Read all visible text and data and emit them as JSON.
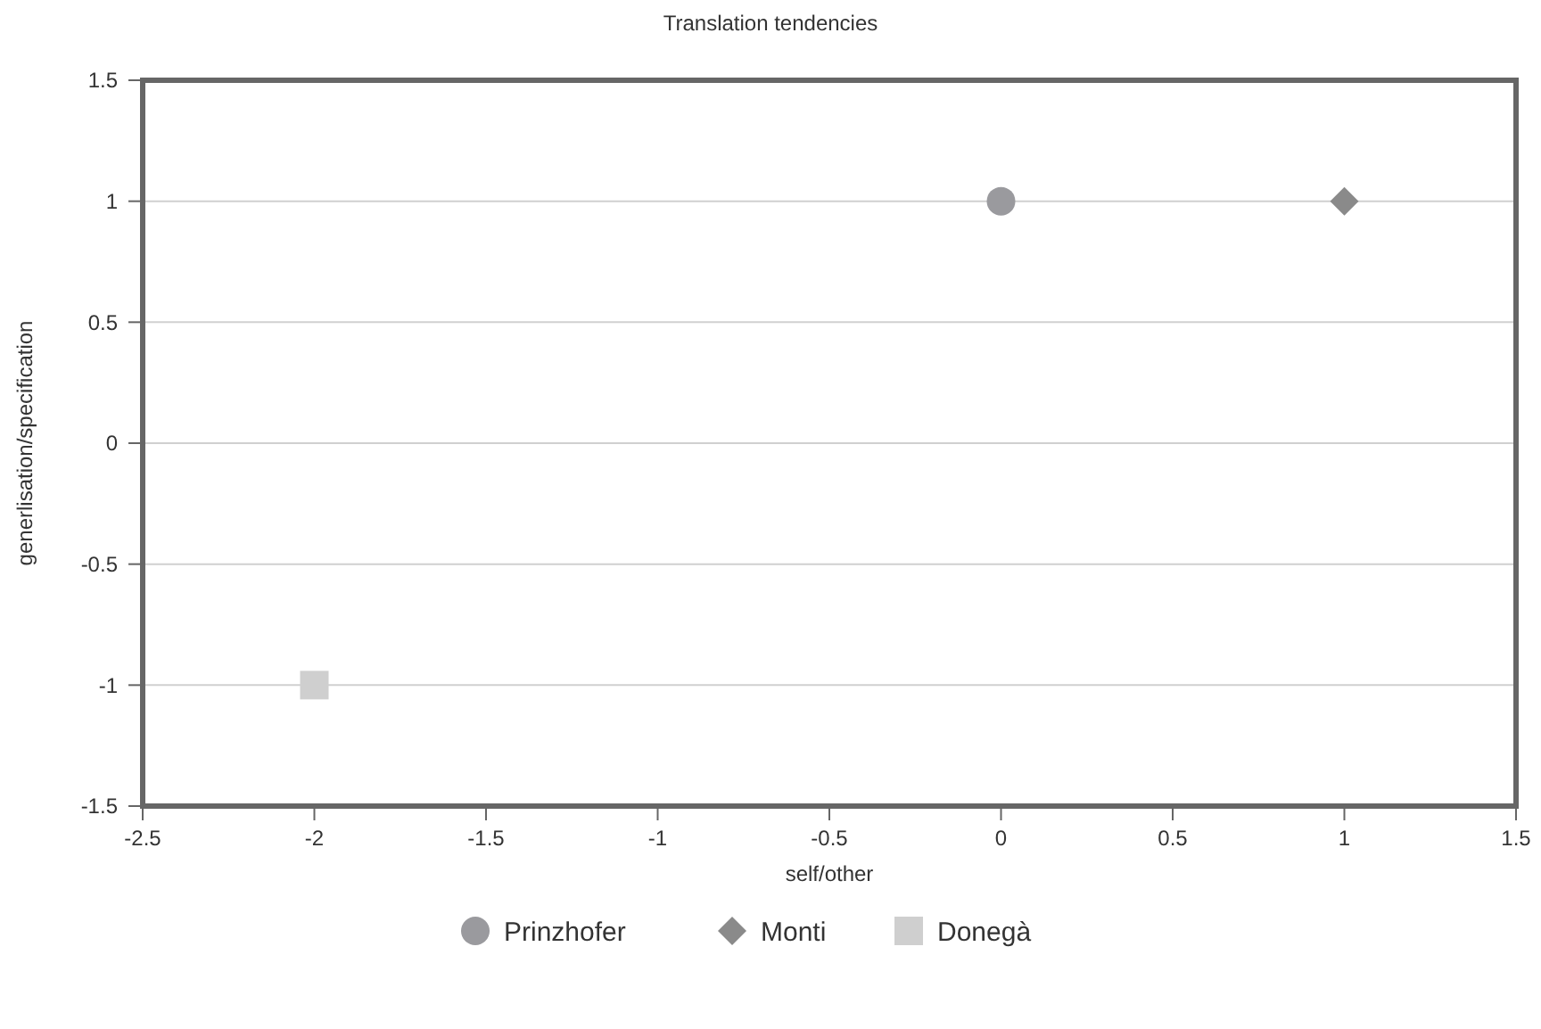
{
  "chart_data": {
    "type": "scatter",
    "title": "Translation tendencies",
    "xlabel": "self/other",
    "ylabel": "generlisation/specification",
    "xlim": [
      -2.5,
      1.5
    ],
    "ylim": [
      -1.5,
      1.5
    ],
    "xticks": [
      -2.5,
      -2,
      -1.5,
      -1,
      -0.5,
      0,
      0.5,
      1,
      1.5
    ],
    "yticks": [
      -1.5,
      -1,
      -0.5,
      0,
      0.5,
      1,
      1.5
    ],
    "grid": "y",
    "legend": "bottom",
    "series": [
      {
        "name": "Prinzhofer",
        "color": "#9a9a9e",
        "marker": "circle",
        "x": [
          0
        ],
        "values": [
          1
        ]
      },
      {
        "name": "Monti",
        "color": "#8a8a8a",
        "marker": "diamond",
        "x": [
          1
        ],
        "values": [
          1
        ]
      },
      {
        "name": "Donegà",
        "color": "#cfcfcf",
        "marker": "square",
        "x": [
          -2
        ],
        "values": [
          -1
        ]
      }
    ]
  }
}
